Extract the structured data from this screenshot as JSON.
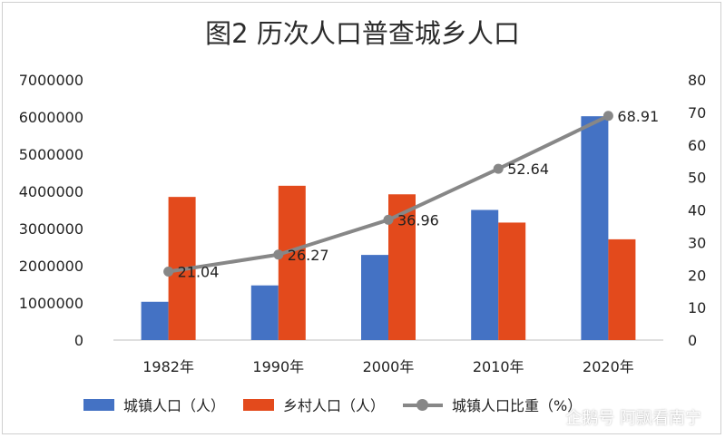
{
  "chart_data": {
    "type": "bar",
    "title": "图2  历次人口普查城乡人口",
    "categories": [
      "1982年",
      "1990年",
      "2000年",
      "2010年",
      "2020年"
    ],
    "series": [
      {
        "name": "城镇人口（人）",
        "kind": "bar",
        "axis": "left",
        "color": "#4472c4",
        "values": [
          1030000,
          1470000,
          2290000,
          3500000,
          6020000
        ]
      },
      {
        "name": "乡村人口（人）",
        "kind": "bar",
        "axis": "left",
        "color": "#e34a1c",
        "values": [
          3850000,
          4150000,
          3920000,
          3160000,
          2710000
        ]
      },
      {
        "name": "城镇人口比重（%）",
        "kind": "line",
        "axis": "right",
        "color": "#878787",
        "values": [
          21.04,
          26.27,
          36.96,
          52.64,
          68.91
        ],
        "labels": [
          "21.04",
          "26.27",
          "36.96",
          "52.64",
          "68.91"
        ]
      }
    ],
    "y_left": {
      "ylim": [
        0,
        7000000
      ],
      "ticks": [
        "0",
        "1000000",
        "2000000",
        "3000000",
        "4000000",
        "5000000",
        "6000000",
        "7000000"
      ]
    },
    "y_right": {
      "ylim": [
        0,
        80
      ],
      "ticks": [
        "0",
        "10",
        "20",
        "30",
        "40",
        "50",
        "60",
        "70",
        "80"
      ]
    },
    "grid": false,
    "legend": "bottom"
  },
  "watermark": "企鹅号 阿飘看南宁"
}
